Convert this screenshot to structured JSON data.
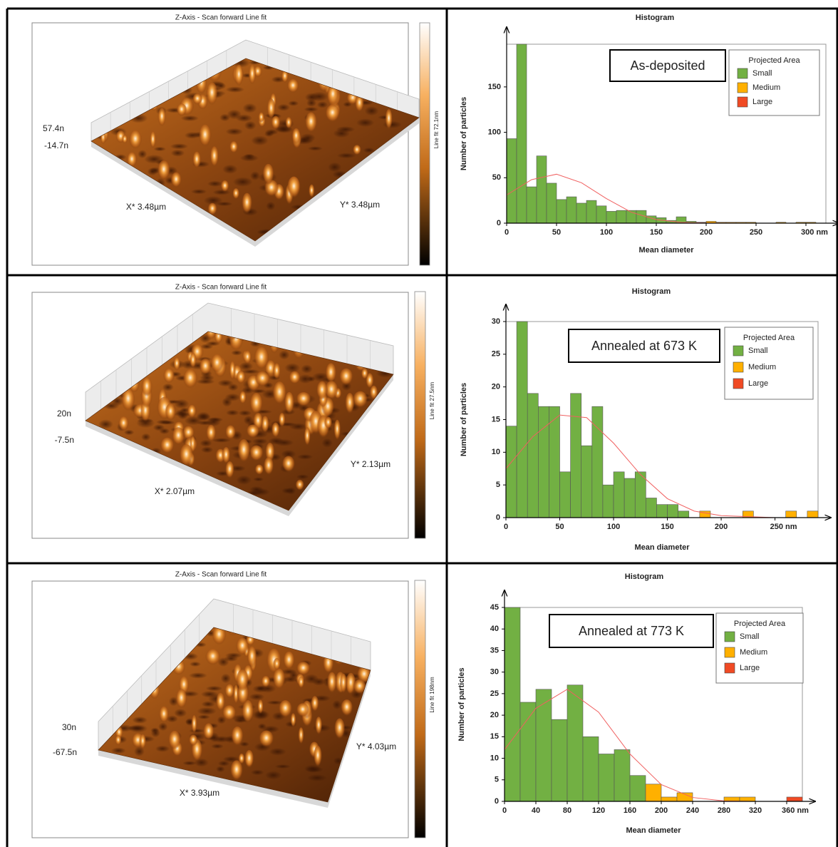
{
  "afm_panels": [
    {
      "title": "Z-Axis - Scan forward   Line fit",
      "z_max": "57.4n",
      "z_min": "-14.7n",
      "x_label": "X* 3.48µm",
      "y_label": "Y* 3.48µm",
      "colorbar_label": "Line fit 72.1nm"
    },
    {
      "title": "Z-Axis - Scan forward   Line fit",
      "z_max": "20n",
      "z_min": "-7.5n",
      "x_label": "X* 2.07µm",
      "y_label": "Y* 2.13µm",
      "colorbar_label": "Line fit 27.5nm"
    },
    {
      "title": "Z-Axis - Scan forward   Line fit",
      "z_max": "30n",
      "z_min": "-67.5n",
      "x_label": "X* 3.93µm",
      "y_label": "Y* 4.03µm",
      "colorbar_label": "Line fit 198nm"
    }
  ],
  "chart_data": [
    {
      "type": "histogram",
      "title": "Histogram",
      "x_label": "Mean diameter",
      "y_label": "Number of particles",
      "annotation": "As-deposited",
      "legend_title": "Projected Area",
      "legend": "upper right",
      "bins": [
        0,
        10,
        20,
        30,
        40,
        50,
        60,
        70,
        80,
        90,
        100,
        110,
        120,
        130,
        140,
        150,
        160,
        170,
        180,
        190,
        200,
        210,
        220,
        230,
        240,
        250,
        260,
        270,
        280,
        290,
        300,
        310,
        320
      ],
      "series": [
        {
          "name": "Small",
          "color": "#72b043",
          "values": [
            93,
            197,
            40,
            74,
            44,
            26,
            29,
            22,
            25,
            19,
            13,
            14,
            14,
            14,
            8,
            6,
            3,
            7,
            2,
            1,
            0,
            0,
            0,
            0,
            0,
            0,
            0,
            0,
            0,
            0,
            0,
            0
          ]
        },
        {
          "name": "Medium",
          "color": "#ffb000",
          "values": [
            0,
            0,
            0,
            0,
            0,
            0,
            0,
            0,
            0,
            0,
            0,
            0,
            0,
            0,
            0,
            0,
            0,
            0,
            0,
            0,
            2,
            1,
            1,
            1,
            1,
            0,
            0,
            1,
            0,
            1,
            1,
            0
          ]
        },
        {
          "name": "Large",
          "color": "#f04a24",
          "values": [
            0,
            0,
            0,
            0,
            0,
            0,
            0,
            0,
            0,
            0,
            0,
            0,
            0,
            0,
            0,
            0,
            0,
            0,
            0,
            0,
            0,
            0,
            0,
            0,
            0,
            0,
            0,
            0,
            0,
            0,
            0,
            0
          ]
        }
      ],
      "fit": {
        "color": "#f06060",
        "x": [
          0,
          25,
          50,
          75,
          100,
          125,
          150,
          175,
          200,
          250,
          310
        ],
        "values": [
          31,
          47.9,
          53.9,
          44.5,
          27,
          12,
          3.9,
          0.9,
          0.2,
          0,
          0
        ]
      },
      "xlim": [
        0,
        320
      ],
      "ylim": [
        0,
        197
      ],
      "xticks": [
        0,
        50,
        100,
        150,
        200,
        250,
        {
          "value": 300,
          "label": "300 nm"
        }
      ],
      "yticks": [
        0,
        50,
        100,
        150
      ]
    },
    {
      "type": "histogram",
      "title": "Histogram",
      "x_label": "Mean diameter",
      "y_label": "Number of particles",
      "annotation": "Annealed at 673 K",
      "legend_title": "Projected Area",
      "legend": "upper right",
      "bins": [
        0,
        10,
        20,
        30,
        40,
        50,
        60,
        70,
        80,
        90,
        100,
        110,
        120,
        130,
        140,
        150,
        160,
        170,
        180,
        190,
        200,
        210,
        220,
        230,
        240,
        250,
        260,
        270,
        280,
        290
      ],
      "series": [
        {
          "name": "Small",
          "color": "#72b043",
          "values": [
            14,
            30,
            19,
            17,
            17,
            7,
            19,
            11,
            17,
            5,
            7,
            6,
            7,
            3,
            2,
            2,
            1,
            0,
            0,
            0,
            0,
            0,
            0,
            0,
            0,
            0,
            0,
            0,
            0
          ]
        },
        {
          "name": "Medium",
          "color": "#ffb000",
          "values": [
            0,
            0,
            0,
            0,
            0,
            0,
            0,
            0,
            0,
            0,
            0,
            0,
            0,
            0,
            0,
            0,
            0,
            0,
            1,
            0,
            0,
            0,
            1,
            0,
            0,
            0,
            1,
            0,
            1
          ]
        },
        {
          "name": "Large",
          "color": "#f04a24",
          "values": [
            0,
            0,
            0,
            0,
            0,
            0,
            0,
            0,
            0,
            0,
            0,
            0,
            0,
            0,
            0,
            0,
            0,
            0,
            0,
            0,
            0,
            0,
            0,
            0,
            0,
            0,
            0,
            0,
            0
          ]
        }
      ],
      "fit": {
        "color": "#f06060",
        "x": [
          0,
          25,
          50,
          75,
          100,
          125,
          150,
          175,
          200,
          250,
          290
        ],
        "values": [
          7.5,
          12.4,
          15.7,
          15.3,
          11.4,
          6.6,
          2.9,
          1.0,
          0.3,
          0,
          0
        ]
      },
      "xlim": [
        0,
        290
      ],
      "ylim": [
        0,
        30
      ],
      "xticks": [
        0,
        50,
        100,
        150,
        200,
        {
          "value": 250,
          "label": "250 nm"
        }
      ],
      "yticks": [
        0,
        5,
        10,
        15,
        20,
        25,
        30
      ]
    },
    {
      "type": "histogram",
      "title": "Histogram",
      "x_label": "Mean diameter",
      "y_label": "Number of particles",
      "annotation": "Annealed at 773 K",
      "legend_title": "Projected Area",
      "legend": "upper right",
      "bins": [
        0,
        20,
        40,
        60,
        80,
        100,
        120,
        140,
        160,
        180,
        200,
        220,
        240,
        260,
        280,
        300,
        320,
        340,
        360,
        380
      ],
      "series": [
        {
          "name": "Small",
          "color": "#72b043",
          "values": [
            45,
            23,
            26,
            19,
            27,
            15,
            11,
            12,
            6,
            0,
            0,
            0,
            0,
            0,
            0,
            0,
            0,
            0,
            0
          ]
        },
        {
          "name": "Medium",
          "color": "#ffb000",
          "values": [
            0,
            0,
            0,
            0,
            0,
            0,
            0,
            0,
            0,
            4,
            1,
            2,
            0,
            0,
            1,
            1,
            0,
            0,
            0
          ]
        },
        {
          "name": "Large",
          "color": "#f04a24",
          "values": [
            0,
            0,
            0,
            0,
            0,
            0,
            0,
            0,
            0,
            0,
            0,
            0,
            0,
            0,
            0,
            0,
            0,
            0,
            1
          ]
        }
      ],
      "fit": {
        "color": "#f06060",
        "x": [
          0,
          40,
          80,
          120,
          160,
          200,
          240,
          280,
          320,
          380
        ],
        "values": [
          12,
          21.6,
          26,
          20.7,
          11,
          3.9,
          0.9,
          0.1,
          0,
          0
        ]
      },
      "xlim": [
        0,
        380
      ],
      "ylim": [
        0,
        45
      ],
      "xticks": [
        0,
        40,
        80,
        120,
        160,
        200,
        240,
        280,
        320,
        {
          "value": 360,
          "label": "360 nm"
        }
      ],
      "yticks": [
        0,
        5,
        10,
        15,
        20,
        25,
        30,
        35,
        40,
        45
      ]
    }
  ]
}
